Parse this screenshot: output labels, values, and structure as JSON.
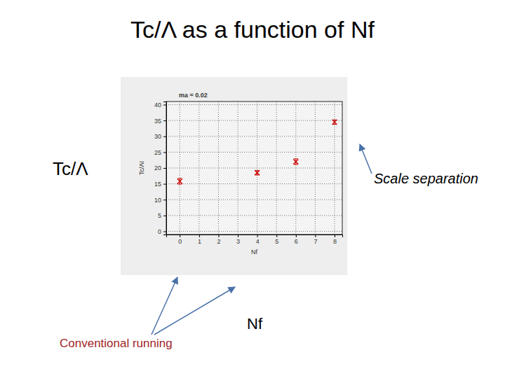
{
  "slide": {
    "title": "Tc/Λ as a function of Nf",
    "y_caption": "Tc/Λ",
    "x_caption": "Nf",
    "annotations": [
      "Scale separation",
      "Conventional running"
    ]
  },
  "chart_data": {
    "type": "scatter",
    "title": "ma = 0.02",
    "x_label": "Nf",
    "y_label": "Tc/ΛI",
    "x": [
      0,
      4,
      6,
      8
    ],
    "values": [
      15.8,
      18.5,
      22,
      34.5
    ],
    "errors": [
      0.9,
      0.7,
      0.9,
      0.7
    ],
    "color": "#cc0000",
    "marker": "x",
    "xlim": [
      -0.7,
      8.4
    ],
    "xticks": [
      0,
      1,
      2,
      3,
      4,
      5,
      6,
      7,
      8
    ],
    "ylim": [
      -1,
      41
    ],
    "yticks": [
      0,
      5,
      10,
      15,
      20,
      25,
      30,
      35,
      40
    ],
    "grid": true
  }
}
